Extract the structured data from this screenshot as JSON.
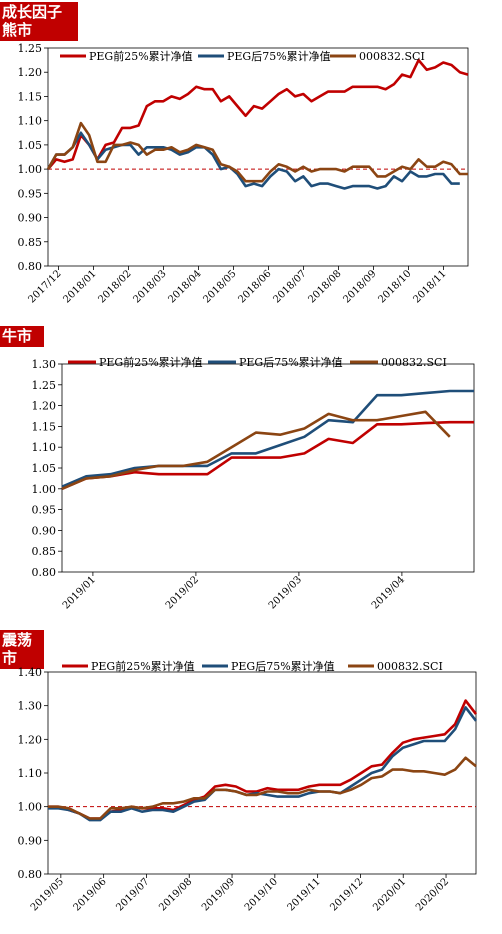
{
  "sections": [
    {
      "label": "成长因子熊市"
    },
    {
      "label": "牛市"
    },
    {
      "label": "震荡市"
    }
  ],
  "colors": {
    "top25": "#c00000",
    "bottom75": "#1f4e79",
    "index": "#8b4513",
    "refline": "#c00000"
  },
  "chart_data": [
    {
      "type": "line",
      "x_labels": [
        "2017/12",
        "2018/01",
        "2018/02",
        "2018/03",
        "2018/04",
        "2018/05",
        "2018/06",
        "2018/07",
        "2018/08",
        "2018/09",
        "2018/10",
        "2018/11"
      ],
      "ylim": [
        0.8,
        1.25
      ],
      "yticks": [
        "0.80",
        "0.85",
        "0.90",
        "0.95",
        "1.00",
        "1.05",
        "1.10",
        "1.15",
        "1.20",
        "1.25"
      ],
      "reference_line": 1.0,
      "legend": "top",
      "series": [
        {
          "name": "PEG前25%累计净值",
          "color": "#c00000",
          "values": [
            1.0,
            1.02,
            1.015,
            1.02,
            1.07,
            1.05,
            1.02,
            1.05,
            1.055,
            1.085,
            1.085,
            1.09,
            1.13,
            1.14,
            1.14,
            1.15,
            1.145,
            1.155,
            1.17,
            1.165,
            1.165,
            1.14,
            1.15,
            1.13,
            1.11,
            1.13,
            1.125,
            1.14,
            1.155,
            1.165,
            1.15,
            1.155,
            1.14,
            1.15,
            1.16,
            1.16,
            1.16,
            1.17,
            1.17,
            1.17,
            1.17,
            1.165,
            1.175,
            1.195,
            1.19,
            1.225,
            1.205,
            1.21,
            1.22,
            1.215,
            1.2,
            1.195
          ]
        },
        {
          "name": "PEG后75%累计净值",
          "color": "#1f4e79",
          "values": [
            1.0,
            1.03,
            1.03,
            1.045,
            1.075,
            1.05,
            1.02,
            1.04,
            1.045,
            1.05,
            1.05,
            1.03,
            1.045,
            1.045,
            1.045,
            1.04,
            1.03,
            1.035,
            1.045,
            1.045,
            1.03,
            1.0,
            1.005,
            0.99,
            0.965,
            0.97,
            0.965,
            0.985,
            1.0,
            0.995,
            0.975,
            0.985,
            0.965,
            0.97,
            0.97,
            0.965,
            0.96,
            0.965,
            0.965,
            0.965,
            0.96,
            0.965,
            0.985,
            0.975,
            0.995,
            0.985,
            0.985,
            0.99,
            0.99,
            0.97,
            0.97
          ]
        },
        {
          "name": "000832.SCI",
          "color": "#8b4513",
          "values": [
            1.0,
            1.03,
            1.03,
            1.045,
            1.095,
            1.07,
            1.015,
            1.015,
            1.05,
            1.05,
            1.055,
            1.05,
            1.03,
            1.04,
            1.04,
            1.045,
            1.035,
            1.04,
            1.05,
            1.045,
            1.04,
            1.01,
            1.005,
            0.995,
            0.975,
            0.975,
            0.975,
            0.995,
            1.01,
            1.005,
            0.995,
            1.005,
            0.995,
            1.0,
            1.0,
            1.0,
            0.995,
            1.005,
            1.005,
            1.005,
            0.985,
            0.985,
            0.995,
            1.005,
            1.0,
            1.02,
            1.005,
            1.005,
            1.015,
            1.01,
            0.99,
            0.99
          ]
        }
      ]
    },
    {
      "type": "line",
      "x_labels": [
        "2019/01",
        "2019/02",
        "2019/03",
        "2019/04"
      ],
      "ylim": [
        0.8,
        1.3
      ],
      "yticks": [
        "0.80",
        "0.85",
        "0.90",
        "0.95",
        "1.00",
        "1.05",
        "1.10",
        "1.15",
        "1.20",
        "1.25",
        "1.30"
      ],
      "legend": "top",
      "series": [
        {
          "name": "PEG前25%累计净值",
          "color": "#c00000",
          "values": [
            1.0,
            1.025,
            1.03,
            1.04,
            1.035,
            1.035,
            1.035,
            1.075,
            1.075,
            1.075,
            1.085,
            1.12,
            1.11,
            1.155,
            1.155,
            1.158,
            1.16,
            1.16
          ]
        },
        {
          "name": "PEG后75%累计净值",
          "color": "#1f4e79",
          "values": [
            1.005,
            1.03,
            1.035,
            1.05,
            1.055,
            1.055,
            1.055,
            1.085,
            1.085,
            1.105,
            1.125,
            1.165,
            1.16,
            1.225,
            1.225,
            1.23,
            1.235,
            1.235
          ]
        },
        {
          "name": "000832.SCI",
          "color": "#8b4513",
          "values": [
            1.0,
            1.025,
            1.03,
            1.045,
            1.055,
            1.055,
            1.065,
            1.1,
            1.135,
            1.13,
            1.145,
            1.18,
            1.165,
            1.165,
            1.175,
            1.185,
            1.125
          ]
        }
      ]
    },
    {
      "type": "line",
      "x_labels": [
        "2019/05",
        "2019/06",
        "2019/07",
        "2019/08",
        "2019/09",
        "2019/10",
        "2019/11",
        "2019/12",
        "2020/01",
        "2020/02"
      ],
      "ylim": [
        0.8,
        1.4
      ],
      "yticks": [
        "0.80",
        "0.90",
        "1.00",
        "1.10",
        "1.20",
        "1.30",
        "1.40"
      ],
      "reference_line": 1.0,
      "legend": "top",
      "series": [
        {
          "name": "PEG前25%累计净值",
          "color": "#c00000",
          "values": [
            1.0,
            1.0,
            0.99,
            0.98,
            0.965,
            0.965,
            0.985,
            0.99,
            1.0,
            0.995,
            0.995,
            0.995,
            0.99,
            1.005,
            1.02,
            1.03,
            1.06,
            1.065,
            1.06,
            1.045,
            1.045,
            1.055,
            1.05,
            1.05,
            1.05,
            1.06,
            1.065,
            1.065,
            1.065,
            1.08,
            1.1,
            1.12,
            1.125,
            1.16,
            1.19,
            1.2,
            1.205,
            1.21,
            1.215,
            1.245,
            1.315,
            1.275
          ]
        },
        {
          "name": "PEG后75%累计净值",
          "color": "#1f4e79",
          "values": [
            0.995,
            0.995,
            0.99,
            0.98,
            0.96,
            0.96,
            0.985,
            0.985,
            0.995,
            0.985,
            0.99,
            0.99,
            0.985,
            1.0,
            1.015,
            1.02,
            1.05,
            1.05,
            1.045,
            1.035,
            1.04,
            1.035,
            1.03,
            1.03,
            1.03,
            1.04,
            1.045,
            1.045,
            1.04,
            1.06,
            1.08,
            1.1,
            1.11,
            1.15,
            1.175,
            1.185,
            1.195,
            1.195,
            1.195,
            1.23,
            1.295,
            1.255
          ]
        },
        {
          "name": "000832.SCI",
          "color": "#8b4513",
          "values": [
            1.0,
            1.0,
            0.995,
            0.98,
            0.965,
            0.965,
            0.995,
            0.995,
            1.0,
            0.995,
            1.0,
            1.01,
            1.01,
            1.015,
            1.025,
            1.025,
            1.05,
            1.05,
            1.045,
            1.035,
            1.035,
            1.045,
            1.045,
            1.04,
            1.04,
            1.05,
            1.045,
            1.045,
            1.04,
            1.05,
            1.065,
            1.085,
            1.09,
            1.11,
            1.11,
            1.105,
            1.105,
            1.1,
            1.095,
            1.11,
            1.145,
            1.12
          ]
        }
      ]
    }
  ]
}
